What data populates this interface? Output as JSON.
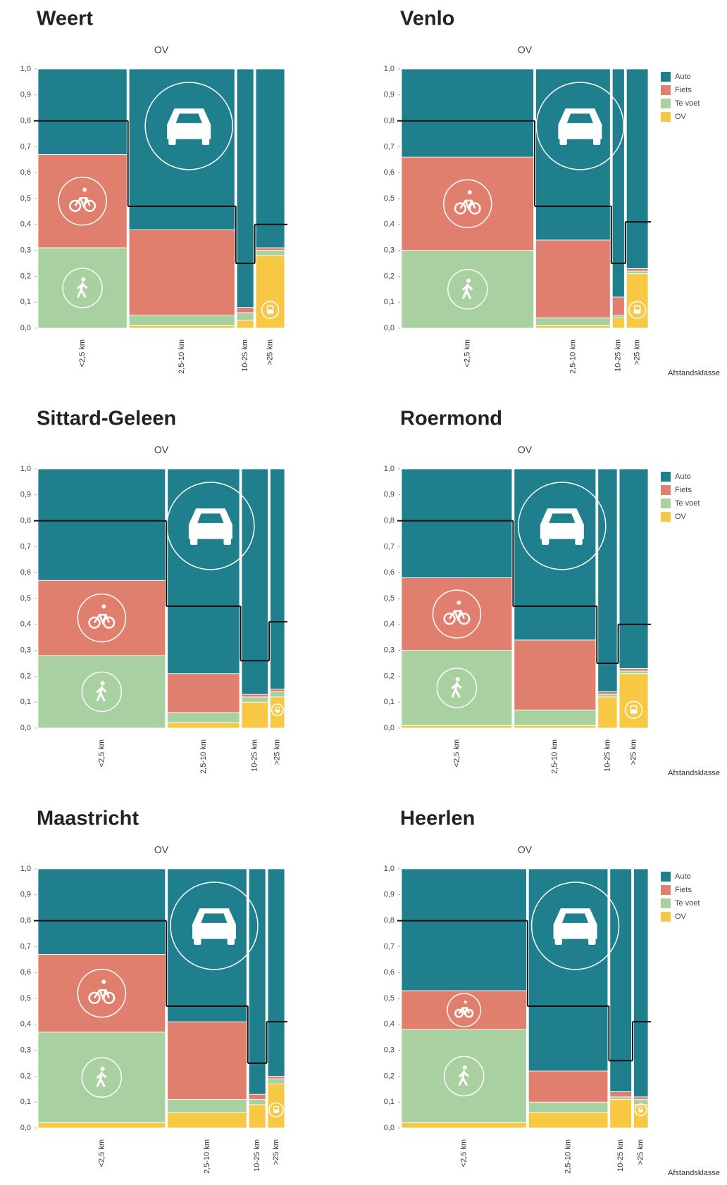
{
  "chart_data": [
    {
      "type": "marimekko",
      "title": "Weert",
      "top_label": "OV",
      "categories": [
        "<2,5 km",
        "2,5-10 km",
        "10-25 km",
        ">25 km"
      ],
      "widths": [
        0.37,
        0.44,
        0.07,
        0.12
      ],
      "series": [
        {
          "color": "#f7c843",
          "values": [
            0.0,
            0.01,
            0.03,
            0.28
          ]
        },
        {
          "color": "#a9d0a0",
          "values": [
            0.31,
            0.04,
            0.03,
            0.02
          ]
        },
        {
          "color": "#e07f6e",
          "values": [
            0.36,
            0.33,
            0.02,
            0.01
          ]
        },
        {
          "color": "#1f7f8c",
          "values": [
            0.33,
            0.62,
            0.92,
            0.69
          ]
        }
      ],
      "line_values": [
        0.8,
        0.47,
        0.25,
        0.4
      ],
      "line_color": "#111111",
      "ylim": [
        0,
        1
      ],
      "yticks": [
        {
          "value": 0,
          "label": "0,0"
        },
        {
          "value": 0.1,
          "label": "0,1"
        },
        {
          "value": 0.2,
          "label": "0,2"
        },
        {
          "value": 0.3,
          "label": "0,3"
        },
        {
          "value": 0.4,
          "label": "0,4"
        },
        {
          "value": 0.5,
          "label": "0,5"
        },
        {
          "value": 0.6,
          "label": "0,6"
        },
        {
          "value": 0.7,
          "label": "0,7"
        },
        {
          "value": 0.8,
          "label": "0,8"
        },
        {
          "value": 0.9,
          "label": "0,9"
        },
        {
          "value": 1,
          "label": "1,0"
        }
      ],
      "legend": false
    },
    {
      "type": "marimekko",
      "title": "Venlo",
      "top_label": "OV",
      "categories": [
        "<2,5 km",
        "2,5-10 km",
        "10-25 km",
        ">25 km"
      ],
      "widths": [
        0.55,
        0.31,
        0.05,
        0.09
      ],
      "series": [
        {
          "name": "OV",
          "color": "#f7c843",
          "values": [
            0.0,
            0.01,
            0.04,
            0.21
          ]
        },
        {
          "name": "Te voet",
          "color": "#a9d0a0",
          "values": [
            0.3,
            0.03,
            0.01,
            0.01
          ]
        },
        {
          "name": "Fiets",
          "color": "#e07f6e",
          "values": [
            0.36,
            0.3,
            0.07,
            0.01
          ]
        },
        {
          "name": "Auto",
          "color": "#1f7f8c",
          "values": [
            0.34,
            0.66,
            0.88,
            0.77
          ]
        }
      ],
      "line_values": [
        0.8,
        0.47,
        0.25,
        0.41
      ],
      "line_color": "#111111",
      "ylim": [
        0,
        1
      ],
      "yticks": [
        {
          "value": 0,
          "label": "0,0"
        },
        {
          "value": 0.1,
          "label": "0,1"
        },
        {
          "value": 0.2,
          "label": "0,2"
        },
        {
          "value": 0.3,
          "label": "0,3"
        },
        {
          "value": 0.4,
          "label": "0,4"
        },
        {
          "value": 0.5,
          "label": "0,5"
        },
        {
          "value": 0.6,
          "label": "0,6"
        },
        {
          "value": 0.7,
          "label": "0,7"
        },
        {
          "value": 0.8,
          "label": "0,8"
        },
        {
          "value": 0.9,
          "label": "0,9"
        },
        {
          "value": 1,
          "label": "1,0"
        }
      ],
      "legend": true,
      "xlabel": "Afstandsklasse"
    },
    {
      "type": "marimekko",
      "title": "Sittard-Geleen",
      "top_label": "OV",
      "categories": [
        "<2,5 km",
        "2,5-10 km",
        "10-25 km",
        ">25 km"
      ],
      "widths": [
        0.53,
        0.3,
        0.11,
        0.06
      ],
      "series": [
        {
          "color": "#f7c843",
          "values": [
            0.0,
            0.02,
            0.1,
            0.12
          ]
        },
        {
          "color": "#a9d0a0",
          "values": [
            0.28,
            0.04,
            0.02,
            0.02
          ]
        },
        {
          "color": "#e07f6e",
          "values": [
            0.29,
            0.15,
            0.01,
            0.01
          ]
        },
        {
          "color": "#1f7f8c",
          "values": [
            0.43,
            0.79,
            0.87,
            0.85
          ]
        }
      ],
      "line_values": [
        0.8,
        0.47,
        0.26,
        0.41
      ],
      "line_color": "#111111",
      "ylim": [
        0,
        1
      ],
      "yticks": [
        {
          "value": 0,
          "label": "0,0"
        },
        {
          "value": 0.1,
          "label": "0,1"
        },
        {
          "value": 0.2,
          "label": "0,2"
        },
        {
          "value": 0.3,
          "label": "0,3"
        },
        {
          "value": 0.4,
          "label": "0,4"
        },
        {
          "value": 0.5,
          "label": "0,5"
        },
        {
          "value": 0.6,
          "label": "0,6"
        },
        {
          "value": 0.7,
          "label": "0,7"
        },
        {
          "value": 0.8,
          "label": "0,8"
        },
        {
          "value": 0.9,
          "label": "0,9"
        },
        {
          "value": 1,
          "label": "1,0"
        }
      ],
      "legend": false
    },
    {
      "type": "marimekko",
      "title": "Roermond",
      "top_label": "OV",
      "categories": [
        "<2,5 km",
        "2,5-10 km",
        "10-25 km",
        ">25 km"
      ],
      "widths": [
        0.46,
        0.34,
        0.08,
        0.12
      ],
      "series": [
        {
          "name": "OV",
          "color": "#f7c843",
          "values": [
            0.01,
            0.01,
            0.12,
            0.21
          ]
        },
        {
          "name": "Te voet",
          "color": "#a9d0a0",
          "values": [
            0.29,
            0.06,
            0.01,
            0.01
          ]
        },
        {
          "name": "Fiets",
          "color": "#e07f6e",
          "values": [
            0.28,
            0.27,
            0.01,
            0.01
          ]
        },
        {
          "name": "Auto",
          "color": "#1f7f8c",
          "values": [
            0.42,
            0.66,
            0.86,
            0.77
          ]
        }
      ],
      "line_values": [
        0.8,
        0.47,
        0.25,
        0.4
      ],
      "line_color": "#111111",
      "ylim": [
        0,
        1
      ],
      "yticks": [
        {
          "value": 0,
          "label": "0,0"
        },
        {
          "value": 0.1,
          "label": "0,1"
        },
        {
          "value": 0.2,
          "label": "0,2"
        },
        {
          "value": 0.3,
          "label": "0,3"
        },
        {
          "value": 0.4,
          "label": "0,4"
        },
        {
          "value": 0.5,
          "label": "0,5"
        },
        {
          "value": 0.6,
          "label": "0,6"
        },
        {
          "value": 0.7,
          "label": "0,7"
        },
        {
          "value": 0.8,
          "label": "0,8"
        },
        {
          "value": 0.9,
          "label": "0,9"
        },
        {
          "value": 1,
          "label": "1,0"
        }
      ],
      "legend": true,
      "xlabel": "Afstandsklasse"
    },
    {
      "type": "marimekko",
      "title": "Maastricht",
      "top_label": "OV",
      "categories": [
        "<2,5 km",
        "2,5-10 km",
        "10-25 km",
        ">25 km"
      ],
      "widths": [
        0.53,
        0.33,
        0.07,
        0.07
      ],
      "series": [
        {
          "color": "#f7c843",
          "values": [
            0.02,
            0.06,
            0.09,
            0.17
          ]
        },
        {
          "color": "#a9d0a0",
          "values": [
            0.35,
            0.05,
            0.02,
            0.02
          ]
        },
        {
          "color": "#e07f6e",
          "values": [
            0.3,
            0.3,
            0.02,
            0.01
          ]
        },
        {
          "color": "#1f7f8c",
          "values": [
            0.33,
            0.59,
            0.87,
            0.8
          ]
        }
      ],
      "line_values": [
        0.8,
        0.47,
        0.25,
        0.41
      ],
      "line_color": "#111111",
      "ylim": [
        0,
        1
      ],
      "yticks": [
        {
          "value": 0,
          "label": "0,0"
        },
        {
          "value": 0.1,
          "label": "0,1"
        },
        {
          "value": 0.2,
          "label": "0,2"
        },
        {
          "value": 0.3,
          "label": "0,3"
        },
        {
          "value": 0.4,
          "label": "0,4"
        },
        {
          "value": 0.5,
          "label": "0,5"
        },
        {
          "value": 0.6,
          "label": "0,6"
        },
        {
          "value": 0.7,
          "label": "0,7"
        },
        {
          "value": 0.8,
          "label": "0,8"
        },
        {
          "value": 0.9,
          "label": "0,9"
        },
        {
          "value": 1,
          "label": "1,0"
        }
      ],
      "legend": false
    },
    {
      "type": "marimekko",
      "title": "Heerlen",
      "top_label": "OV",
      "categories": [
        "<2,5 km",
        "2,5-10 km",
        "10-25 km",
        ">25 km"
      ],
      "widths": [
        0.52,
        0.33,
        0.09,
        0.06
      ],
      "series": [
        {
          "name": "OV",
          "color": "#f7c843",
          "values": [
            0.02,
            0.06,
            0.11,
            0.09
          ]
        },
        {
          "name": "Te voet",
          "color": "#a9d0a0",
          "values": [
            0.36,
            0.04,
            0.01,
            0.02
          ]
        },
        {
          "name": "Fiets",
          "color": "#e07f6e",
          "values": [
            0.15,
            0.12,
            0.02,
            0.01
          ]
        },
        {
          "name": "Auto",
          "color": "#1f7f8c",
          "values": [
            0.47,
            0.78,
            0.86,
            0.88
          ]
        }
      ],
      "line_values": [
        0.8,
        0.47,
        0.26,
        0.41
      ],
      "line_color": "#111111",
      "ylim": [
        0,
        1
      ],
      "yticks": [
        {
          "value": 0,
          "label": "0,0"
        },
        {
          "value": 0.1,
          "label": "0,1"
        },
        {
          "value": 0.2,
          "label": "0,2"
        },
        {
          "value": 0.3,
          "label": "0,3"
        },
        {
          "value": 0.4,
          "label": "0,4"
        },
        {
          "value": 0.5,
          "label": "0,5"
        },
        {
          "value": 0.6,
          "label": "0,6"
        },
        {
          "value": 0.7,
          "label": "0,7"
        },
        {
          "value": 0.8,
          "label": "0,8"
        },
        {
          "value": 0.9,
          "label": "0,9"
        },
        {
          "value": 1,
          "label": "1,0"
        }
      ],
      "legend": true,
      "xlabel": "Afstandsklasse"
    }
  ]
}
